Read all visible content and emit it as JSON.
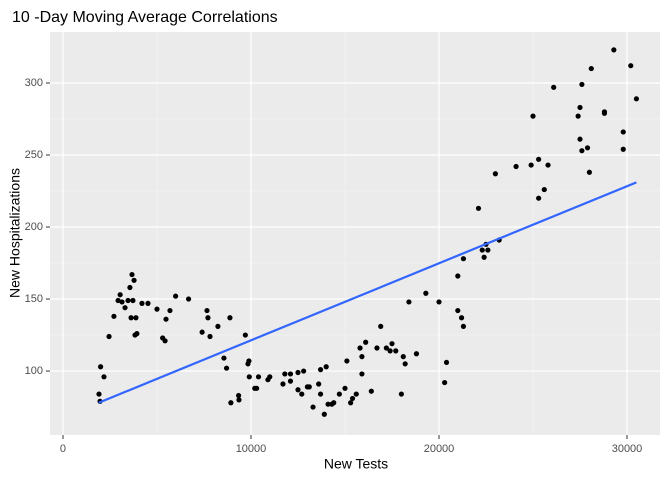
{
  "chart_data": {
    "type": "scatter",
    "title": "10 -Day Moving Average Correlations",
    "x_label": "New Tests",
    "y_label": "New Hospitalizations",
    "xlim": [
      -691,
      31755
    ],
    "ylim": [
      55.6,
      335.4
    ],
    "xticks": [
      0,
      10000,
      20000,
      30000
    ],
    "yticks": [
      100,
      150,
      200,
      250,
      300
    ],
    "grid": true,
    "point_color": "#000000",
    "x": [
      1915,
      1970,
      2000,
      2180,
      2450,
      2710,
      2930,
      3040,
      3140,
      3300,
      3460,
      3560,
      3670,
      3780,
      3720,
      3620,
      3880,
      3830,
      3930,
      4200,
      4520,
      5000,
      5300,
      5430,
      5480,
      5690,
      5990,
      6680,
      7400,
      7660,
      7710,
      7820,
      8240,
      8560,
      8700,
      8880,
      8930,
      9340,
      9360,
      9700,
      9840,
      9890,
      9910,
      10200,
      10300,
      10400,
      10900,
      11000,
      11700,
      11800,
      12100,
      12100,
      12500,
      12500,
      12700,
      12800,
      13000,
      13100,
      13300,
      13600,
      13700,
      13700,
      13900,
      14000,
      14100,
      14300,
      14400,
      14700,
      15000,
      15100,
      15300,
      15400,
      15600,
      15800,
      15900,
      15900,
      16100,
      16400,
      16700,
      16900,
      17200,
      17400,
      17500,
      17700,
      18000,
      18100,
      18200,
      18400,
      18800,
      19300,
      20000,
      20300,
      20400,
      21000,
      21000,
      21200,
      21300,
      21300,
      22100,
      22300,
      22400,
      22500,
      22600,
      23000,
      23200,
      24100,
      24900,
      25000,
      25300,
      25300,
      25600,
      25800,
      26100,
      27400,
      27500,
      27500,
      27600,
      27600,
      27900,
      28000,
      28100,
      28800,
      28800,
      29300,
      29800,
      29800,
      30200,
      30500
    ],
    "y": [
      84,
      79,
      103,
      96,
      124,
      138,
      149,
      153,
      148,
      144,
      149,
      158,
      167,
      163,
      149,
      137,
      137,
      125,
      126,
      147,
      147,
      143,
      123,
      121,
      136,
      142,
      152,
      150,
      127,
      142,
      137,
      124,
      131,
      109,
      102,
      137,
      78,
      83,
      80,
      125,
      105,
      107,
      96,
      88,
      88,
      96,
      94,
      96,
      91,
      98,
      98,
      93,
      99,
      87,
      84,
      100,
      89,
      89,
      75,
      91,
      101,
      84,
      70,
      103,
      77,
      77,
      78,
      84,
      88,
      107,
      78,
      81,
      84,
      116,
      98,
      110,
      120,
      86,
      116,
      131,
      116,
      114,
      119,
      114,
      84,
      110,
      105,
      148,
      112,
      154,
      148,
      92,
      106,
      142,
      166,
      137,
      131,
      178,
      213,
      184,
      179,
      188,
      184,
      237,
      191,
      242,
      243,
      277,
      220,
      247,
      226,
      243,
      297,
      277,
      283,
      261,
      299,
      253,
      255,
      238,
      310,
      280,
      279,
      323,
      266,
      254,
      312,
      289
    ],
    "fit": {
      "x": [
        1900,
        30500
      ],
      "y": [
        78,
        231
      ],
      "color": "#3366ff"
    }
  }
}
